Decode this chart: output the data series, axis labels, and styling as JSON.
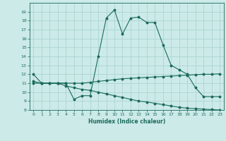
{
  "xlabel": "Humidex (Indice chaleur)",
  "bg_color": "#cceae8",
  "grid_color": "#b0d8d4",
  "line_color": "#1a6b5a",
  "xlim": [
    -0.5,
    23.5
  ],
  "ylim": [
    8,
    20
  ],
  "yticks": [
    8,
    9,
    10,
    11,
    12,
    13,
    14,
    15,
    16,
    17,
    18,
    19
  ],
  "xticks": [
    0,
    1,
    2,
    3,
    4,
    5,
    6,
    7,
    8,
    9,
    10,
    11,
    12,
    13,
    14,
    15,
    16,
    17,
    18,
    19,
    20,
    21,
    22,
    23
  ],
  "line1_x": [
    0,
    1,
    2,
    3,
    4,
    5,
    6,
    7,
    8,
    9,
    10,
    11,
    12,
    13,
    14,
    15,
    16,
    17,
    18,
    19,
    20,
    21,
    22,
    23
  ],
  "line1_y": [
    12,
    11,
    11,
    11,
    11,
    9.2,
    9.6,
    9.6,
    14.0,
    18.3,
    19.2,
    16.5,
    18.3,
    18.4,
    17.8,
    17.8,
    15.3,
    13.0,
    12.5,
    12.0,
    10.5,
    9.5,
    9.5,
    9.5
  ],
  "line2_x": [
    0,
    1,
    2,
    3,
    4,
    5,
    6,
    7,
    8,
    9,
    10,
    11,
    12,
    13,
    14,
    15,
    16,
    17,
    18,
    19,
    20,
    21,
    22,
    23
  ],
  "line2_y": [
    11.2,
    11.0,
    11.0,
    11.0,
    11.0,
    11.0,
    11.0,
    11.1,
    11.2,
    11.3,
    11.4,
    11.5,
    11.55,
    11.6,
    11.65,
    11.7,
    11.75,
    11.8,
    11.85,
    11.9,
    11.95,
    12.0,
    12.0,
    12.05
  ],
  "line3_x": [
    0,
    1,
    2,
    3,
    4,
    5,
    6,
    7,
    8,
    9,
    10,
    11,
    12,
    13,
    14,
    15,
    16,
    17,
    18,
    19,
    20,
    21,
    22,
    23
  ],
  "line3_y": [
    11.0,
    11.0,
    11.0,
    11.0,
    10.7,
    10.5,
    10.3,
    10.2,
    10.0,
    9.8,
    9.6,
    9.4,
    9.2,
    9.0,
    8.9,
    8.75,
    8.6,
    8.45,
    8.3,
    8.2,
    8.15,
    8.1,
    8.05,
    8.0
  ]
}
